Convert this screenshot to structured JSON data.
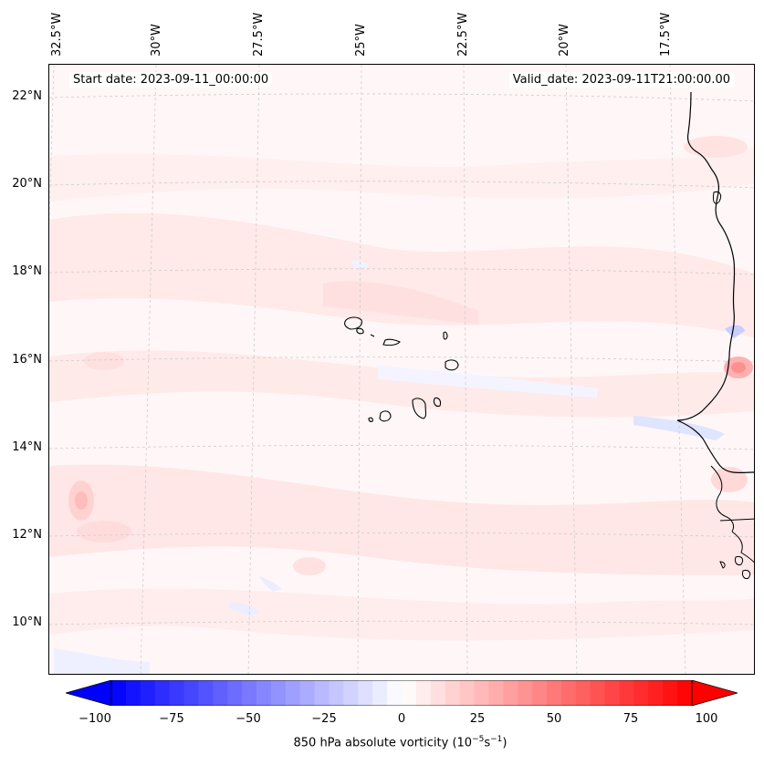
{
  "header": {
    "start_date": "Start date: 2023-09-11_00:00:00",
    "valid_date": "Valid_date: 2023-09-11T21:00:00.00"
  },
  "longitude_labels": [
    "32.5°W",
    "30°W",
    "27.5°W",
    "25°W",
    "22.5°W",
    "20°W",
    "17.5°W"
  ],
  "latitude_labels": [
    "22°N",
    "20°N",
    "18°N",
    "16°N",
    "14°N",
    "12°N",
    "10°N"
  ],
  "colorbar": {
    "label": "850 hPa absolute vorticity (10",
    "label_exp1": "−5",
    "label_mid": "s",
    "label_exp2": "−1",
    "label_end": ")",
    "ticks": [
      "−100",
      "−75",
      "−50",
      "−25",
      "0",
      "25",
      "50",
      "75",
      "100"
    ],
    "min": -100,
    "max": 100,
    "colors": {
      "neg": "#0000ff",
      "zero": "#ffffff",
      "pos": "#ff0000"
    }
  },
  "colors": {
    "coast": "#000000",
    "grid": "#cccccc",
    "background_field": "#fff6f6",
    "weak_positive": "#ffe6e6",
    "moderate_positive": "#ffd0d0",
    "weak_negative": "#f0f2ff"
  }
}
